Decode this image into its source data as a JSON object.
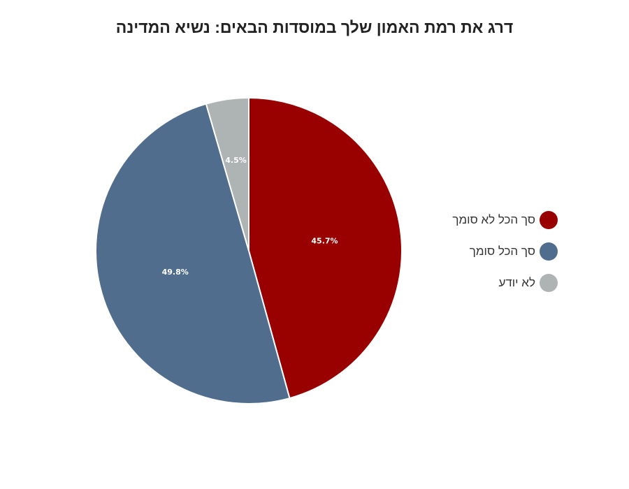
{
  "chart_data": {
    "type": "pie",
    "title": "דרג את רמת האמון שלך במוסדות הבאים: נשיא המדינה",
    "slices": [
      {
        "label": "סך הכל לא סומך",
        "value": 45.7,
        "value_label": "45.7%",
        "color": "#990000"
      },
      {
        "label": "סך הכל סומך",
        "value": 49.8,
        "value_label": "49.8%",
        "color": "#506d8e"
      },
      {
        "label": "לא יודע",
        "value": 4.5,
        "value_label": "4.5%",
        "color": "#aeb3b3"
      }
    ],
    "legend_position": "right",
    "start_angle": "12 o'clock, clockwise"
  }
}
